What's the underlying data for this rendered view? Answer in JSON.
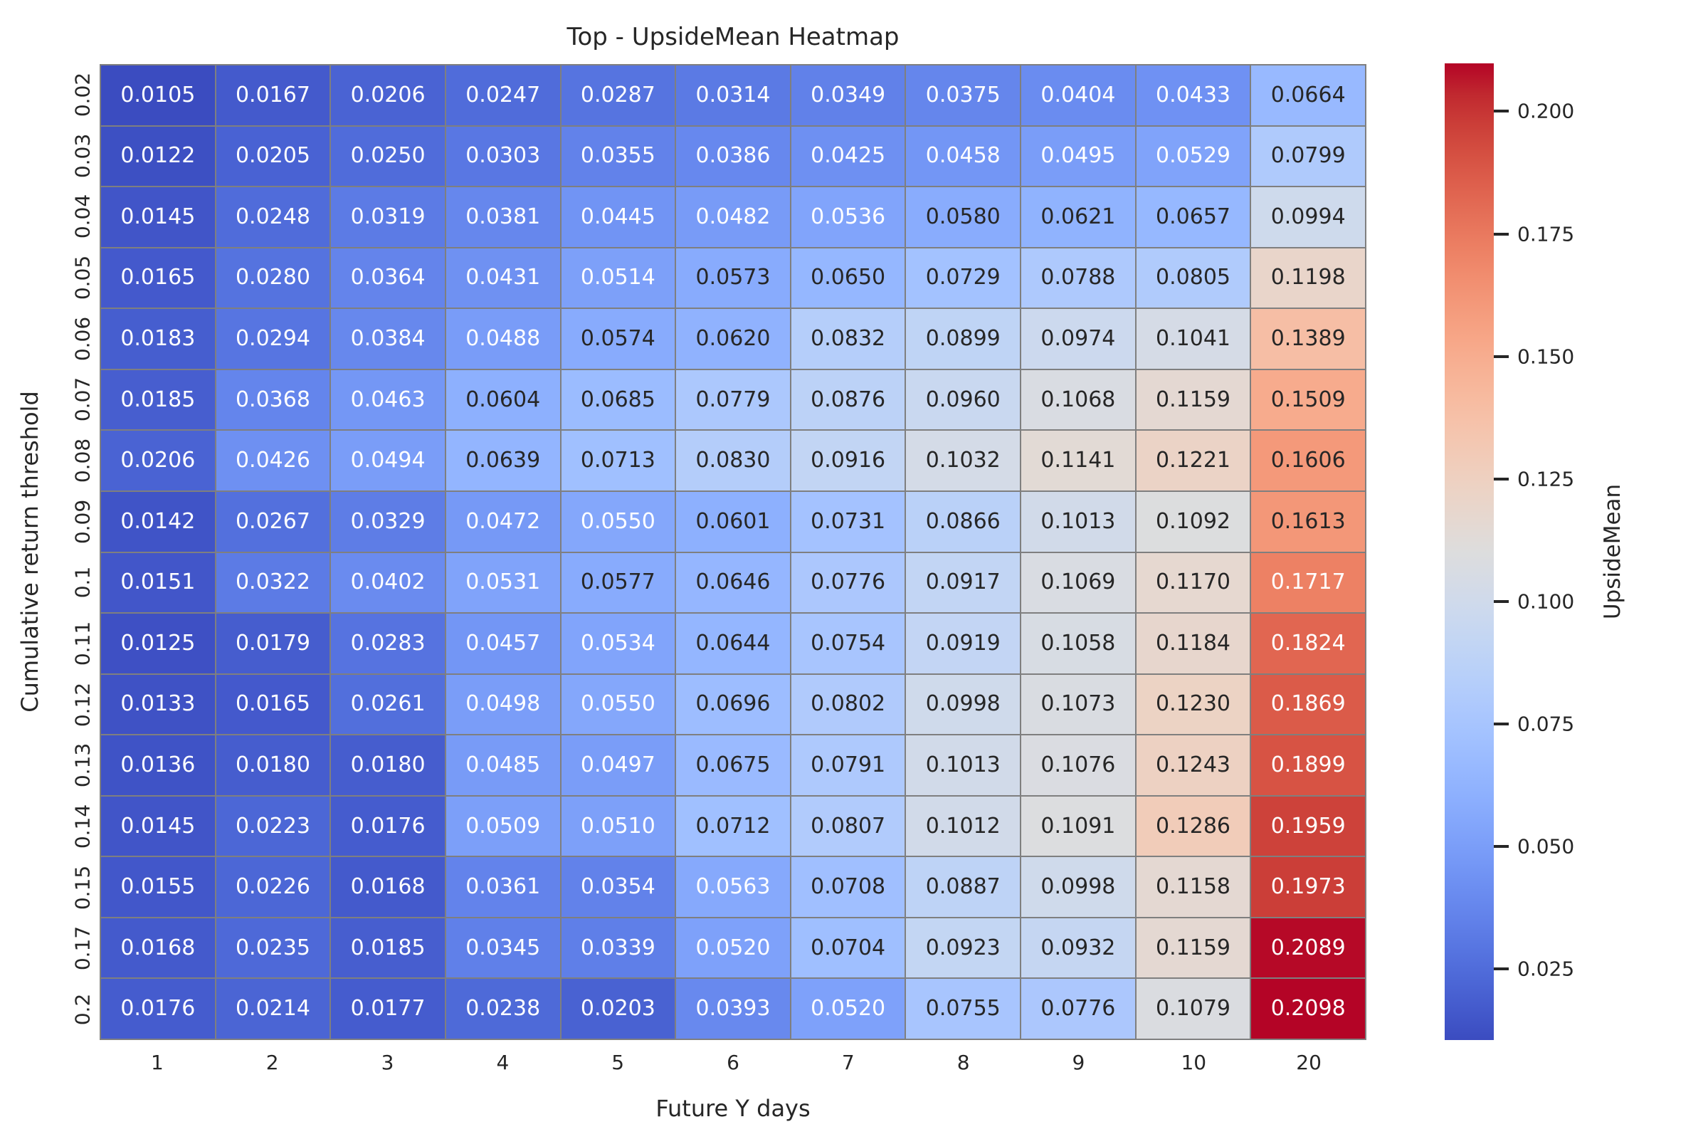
{
  "chart_data": {
    "type": "heatmap",
    "title": "Top - UpsideMean Heatmap",
    "xlabel": "Future Y days",
    "ylabel": "Cumulative return threshold",
    "x_categories": [
      "1",
      "2",
      "3",
      "4",
      "5",
      "6",
      "7",
      "8",
      "9",
      "10",
      "20"
    ],
    "y_categories": [
      "0.02",
      "0.03",
      "0.04",
      "0.05",
      "0.06",
      "0.07",
      "0.08",
      "0.09",
      "0.1",
      "0.11",
      "0.12",
      "0.13",
      "0.14",
      "0.15",
      "0.17",
      "0.2"
    ],
    "values": [
      [
        0.0105,
        0.0167,
        0.0206,
        0.0247,
        0.0287,
        0.0314,
        0.0349,
        0.0375,
        0.0404,
        0.0433,
        0.0664
      ],
      [
        0.0122,
        0.0205,
        0.025,
        0.0303,
        0.0355,
        0.0386,
        0.0425,
        0.0458,
        0.0495,
        0.0529,
        0.0799
      ],
      [
        0.0145,
        0.0248,
        0.0319,
        0.0381,
        0.0445,
        0.0482,
        0.0536,
        0.058,
        0.0621,
        0.0657,
        0.0994
      ],
      [
        0.0165,
        0.028,
        0.0364,
        0.0431,
        0.0514,
        0.0573,
        0.065,
        0.0729,
        0.0788,
        0.0805,
        0.1198
      ],
      [
        0.0183,
        0.0294,
        0.0384,
        0.0488,
        0.0574,
        0.062,
        0.0832,
        0.0899,
        0.0974,
        0.1041,
        0.1389
      ],
      [
        0.0185,
        0.0368,
        0.0463,
        0.0604,
        0.0685,
        0.0779,
        0.0876,
        0.096,
        0.1068,
        0.1159,
        0.1509
      ],
      [
        0.0206,
        0.0426,
        0.0494,
        0.0639,
        0.0713,
        0.083,
        0.0916,
        0.1032,
        0.1141,
        0.1221,
        0.1606
      ],
      [
        0.0142,
        0.0267,
        0.0329,
        0.0472,
        0.055,
        0.0601,
        0.0731,
        0.0866,
        0.1013,
        0.1092,
        0.1613
      ],
      [
        0.0151,
        0.0322,
        0.0402,
        0.0531,
        0.0577,
        0.0646,
        0.0776,
        0.0917,
        0.1069,
        0.117,
        0.1717
      ],
      [
        0.0125,
        0.0179,
        0.0283,
        0.0457,
        0.0534,
        0.0644,
        0.0754,
        0.0919,
        0.1058,
        0.1184,
        0.1824
      ],
      [
        0.0133,
        0.0165,
        0.0261,
        0.0498,
        0.055,
        0.0696,
        0.0802,
        0.0998,
        0.1073,
        0.123,
        0.1869
      ],
      [
        0.0136,
        0.018,
        0.018,
        0.0485,
        0.0497,
        0.0675,
        0.0791,
        0.1013,
        0.1076,
        0.1243,
        0.1899
      ],
      [
        0.0145,
        0.0223,
        0.0176,
        0.0509,
        0.051,
        0.0712,
        0.0807,
        0.1012,
        0.1091,
        0.1286,
        0.1959
      ],
      [
        0.0155,
        0.0226,
        0.0168,
        0.0361,
        0.0354,
        0.0563,
        0.0708,
        0.0887,
        0.0998,
        0.1158,
        0.1973
      ],
      [
        0.0168,
        0.0235,
        0.0185,
        0.0345,
        0.0339,
        0.052,
        0.0704,
        0.0923,
        0.0932,
        0.1159,
        0.2089
      ],
      [
        0.0176,
        0.0214,
        0.0177,
        0.0238,
        0.0203,
        0.0393,
        0.052,
        0.0755,
        0.0776,
        0.1079,
        0.2098
      ]
    ],
    "value_decimals": 4,
    "vmin": 0.0105,
    "vmax": 0.2098,
    "colormap": "coolwarm",
    "colormap_min_hex": "#3b4cc0",
    "colormap_mid_hex": "#dddddd",
    "colormap_max_hex": "#b40426",
    "grid_line_color": "#7f7f7f",
    "annotation_text_light": "#ffffff",
    "annotation_text_dark": "#262626",
    "legend_position": "right",
    "colorbar": {
      "label": "UpsideMean",
      "tick_labels": [
        "0.025",
        "0.050",
        "0.075",
        "0.100",
        "0.125",
        "0.150",
        "0.175",
        "0.200"
      ],
      "tick_values": [
        0.025,
        0.05,
        0.075,
        0.1,
        0.125,
        0.15,
        0.175,
        0.2
      ]
    }
  }
}
